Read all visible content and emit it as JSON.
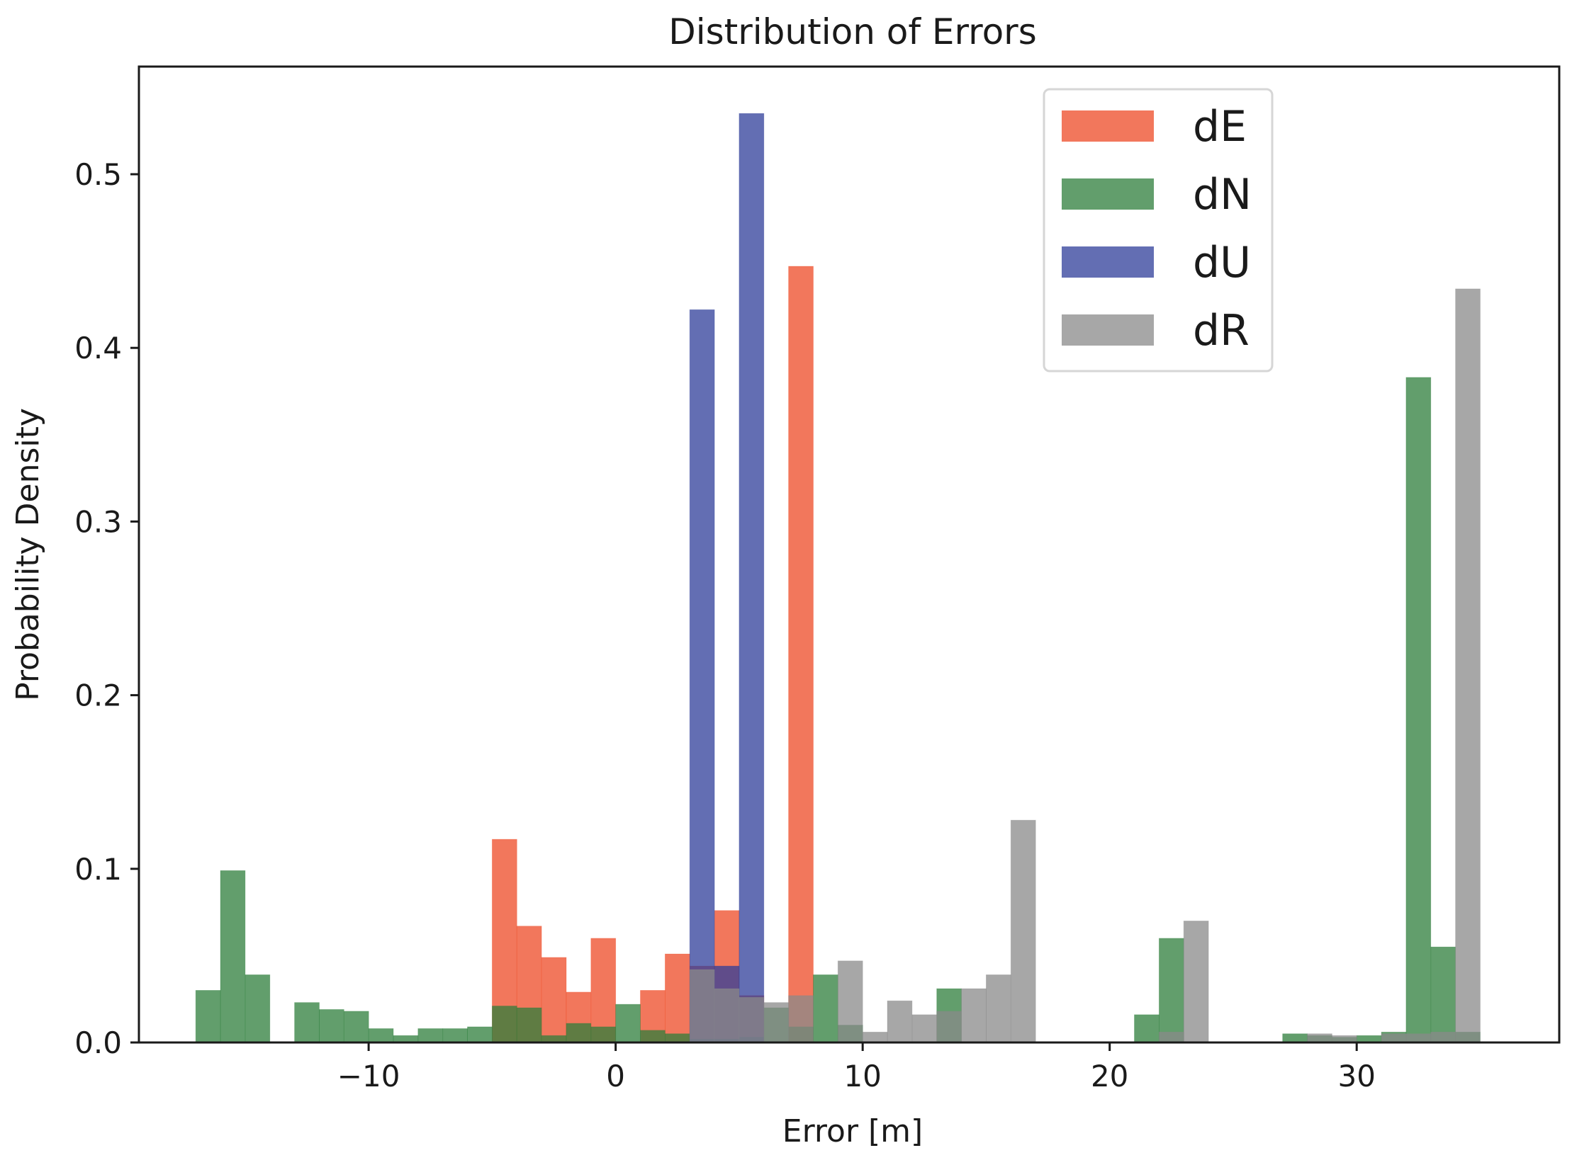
{
  "chart_data": {
    "type": "histogram",
    "title": "Distribution of Errors",
    "xlabel": "Error [m]",
    "ylabel": "Probability Density",
    "xlim": [
      -19.3,
      38.2
    ],
    "ylim": [
      0,
      0.562
    ],
    "xticks": [
      -10,
      0,
      10,
      20,
      30
    ],
    "xtick_labels": [
      "−10",
      "0",
      "10",
      "20",
      "30"
    ],
    "yticks": [
      0.0,
      0.1,
      0.2,
      0.3,
      0.4,
      0.5
    ],
    "ytick_labels": [
      "0.0",
      "0.1",
      "0.2",
      "0.3",
      "0.4",
      "0.5"
    ],
    "legend_position": "upper-right",
    "bin_width": 1.0,
    "series": [
      {
        "name": "dE",
        "color": "#ee4a25",
        "bins": [
          [
            -5.0,
            0.117
          ],
          [
            -4.0,
            0.067
          ],
          [
            -3.0,
            0.049
          ],
          [
            -2.0,
            0.029
          ],
          [
            -1.0,
            0.06
          ],
          [
            1.0,
            0.03
          ],
          [
            2.0,
            0.051
          ],
          [
            3.0,
            0.044
          ],
          [
            4.0,
            0.076
          ],
          [
            5.0,
            0.027
          ],
          [
            7.0,
            0.447
          ]
        ]
      },
      {
        "name": "dN",
        "color": "#2e7d3b",
        "bins": [
          [
            -17.0,
            0.03
          ],
          [
            -16.0,
            0.099
          ],
          [
            -15.0,
            0.039
          ],
          [
            -13.0,
            0.023
          ],
          [
            -12.0,
            0.019
          ],
          [
            -11.0,
            0.018
          ],
          [
            -10.0,
            0.008
          ],
          [
            -9.0,
            0.004
          ],
          [
            -8.0,
            0.008
          ],
          [
            -7.0,
            0.008
          ],
          [
            -6.0,
            0.009
          ],
          [
            -5.0,
            0.021
          ],
          [
            -4.0,
            0.02
          ],
          [
            -3.0,
            0.004
          ],
          [
            -2.0,
            0.011
          ],
          [
            -1.0,
            0.009
          ],
          [
            0.0,
            0.022
          ],
          [
            1.0,
            0.007
          ],
          [
            2.0,
            0.005
          ],
          [
            3.0,
            0.002
          ],
          [
            4.0,
            0.002
          ],
          [
            5.0,
            0.003
          ],
          [
            6.0,
            0.02
          ],
          [
            7.0,
            0.009
          ],
          [
            8.0,
            0.039
          ],
          [
            9.0,
            0.01
          ],
          [
            13.0,
            0.031
          ],
          [
            21.0,
            0.016
          ],
          [
            22.0,
            0.06
          ],
          [
            27.0,
            0.005
          ],
          [
            28.0,
            0.004
          ],
          [
            29.0,
            0.003
          ],
          [
            30.0,
            0.004
          ],
          [
            31.0,
            0.006
          ],
          [
            32.0,
            0.383
          ],
          [
            33.0,
            0.055
          ],
          [
            34.0,
            0.006
          ]
        ]
      },
      {
        "name": "dU",
        "color": "#2f3e99",
        "bins": [
          [
            3.0,
            0.422
          ],
          [
            4.0,
            0.044
          ],
          [
            5.0,
            0.535
          ]
        ]
      },
      {
        "name": "dR",
        "color": "#8a8a8a",
        "bins": [
          [
            3.0,
            0.042
          ],
          [
            4.0,
            0.031
          ],
          [
            5.0,
            0.026
          ],
          [
            6.0,
            0.023
          ],
          [
            7.0,
            0.027
          ],
          [
            9.0,
            0.047
          ],
          [
            10.0,
            0.006
          ],
          [
            11.0,
            0.024
          ],
          [
            12.0,
            0.016
          ],
          [
            13.0,
            0.018
          ],
          [
            14.0,
            0.031
          ],
          [
            15.0,
            0.039
          ],
          [
            16.0,
            0.128
          ],
          [
            22.0,
            0.006
          ],
          [
            23.0,
            0.07
          ],
          [
            28.0,
            0.005
          ],
          [
            29.0,
            0.004
          ],
          [
            31.0,
            0.005
          ],
          [
            32.0,
            0.005
          ],
          [
            33.0,
            0.006
          ],
          [
            34.0,
            0.434
          ]
        ]
      }
    ]
  }
}
